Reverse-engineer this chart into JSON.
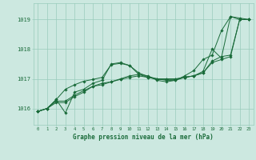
{
  "title": "Graphe pression niveau de la mer (hPa)",
  "background_color": "#cce8e0",
  "grid_color": "#99ccbb",
  "line_color": "#1a6b3a",
  "text_color": "#1a6b3a",
  "xlim": [
    -0.5,
    23.5
  ],
  "ylim": [
    1015.45,
    1019.55
  ],
  "yticks": [
    1016,
    1017,
    1018,
    1019
  ],
  "xticks": [
    0,
    1,
    2,
    3,
    4,
    5,
    6,
    7,
    8,
    9,
    10,
    11,
    12,
    13,
    14,
    15,
    16,
    17,
    18,
    19,
    20,
    21,
    22,
    23
  ],
  "series": [
    [
      1015.9,
      1016.0,
      1016.3,
      1015.85,
      1016.55,
      1016.65,
      1016.85,
      1016.95,
      1017.5,
      1017.55,
      1017.45,
      1017.15,
      1017.1,
      1016.95,
      1016.9,
      1016.95,
      1017.05,
      1017.1,
      1017.25,
      1018.0,
      1017.7,
      1019.1,
      1019.05,
      1019.0
    ],
    [
      1015.9,
      1016.0,
      1016.25,
      1016.25,
      1016.45,
      1016.6,
      1016.75,
      1016.85,
      1016.9,
      1017.0,
      1017.1,
      1017.15,
      1017.05,
      1017.0,
      1017.0,
      1017.0,
      1017.05,
      1017.1,
      1017.2,
      1017.6,
      1017.75,
      1017.8,
      1019.0,
      1019.0
    ],
    [
      1015.9,
      1016.0,
      1016.2,
      1016.2,
      1016.4,
      1016.55,
      1016.75,
      1016.8,
      1016.9,
      1016.98,
      1017.05,
      1017.1,
      1017.05,
      1016.98,
      1016.98,
      1016.98,
      1017.05,
      1017.1,
      1017.2,
      1017.55,
      1017.65,
      1017.75,
      1019.0,
      1019.0
    ],
    [
      1015.9,
      1016.0,
      1016.3,
      1016.65,
      1016.8,
      1016.92,
      1016.98,
      1017.05,
      1017.48,
      1017.52,
      1017.45,
      1017.2,
      1017.08,
      1017.0,
      1016.95,
      1016.95,
      1017.1,
      1017.28,
      1017.65,
      1017.8,
      1018.62,
      1019.1,
      1019.0,
      1019.0
    ]
  ]
}
